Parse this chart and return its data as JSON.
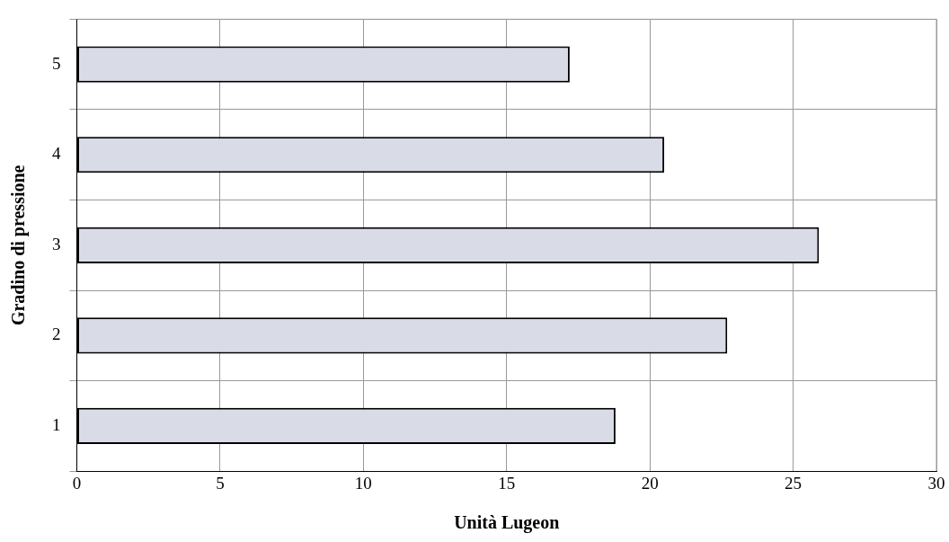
{
  "chart_data": {
    "type": "bar",
    "orientation": "horizontal",
    "xlabel": "Unità Lugeon",
    "ylabel": "Gradino di pressione",
    "categories": [
      "5",
      "4",
      "3",
      "2",
      "1"
    ],
    "values": [
      17.2,
      20.5,
      25.9,
      22.7,
      18.8
    ],
    "color": "#d9dbe6",
    "xlim": [
      0,
      30
    ],
    "xticks": [
      0,
      5,
      10,
      15,
      20,
      25,
      30
    ],
    "grid": true,
    "legend": false
  }
}
